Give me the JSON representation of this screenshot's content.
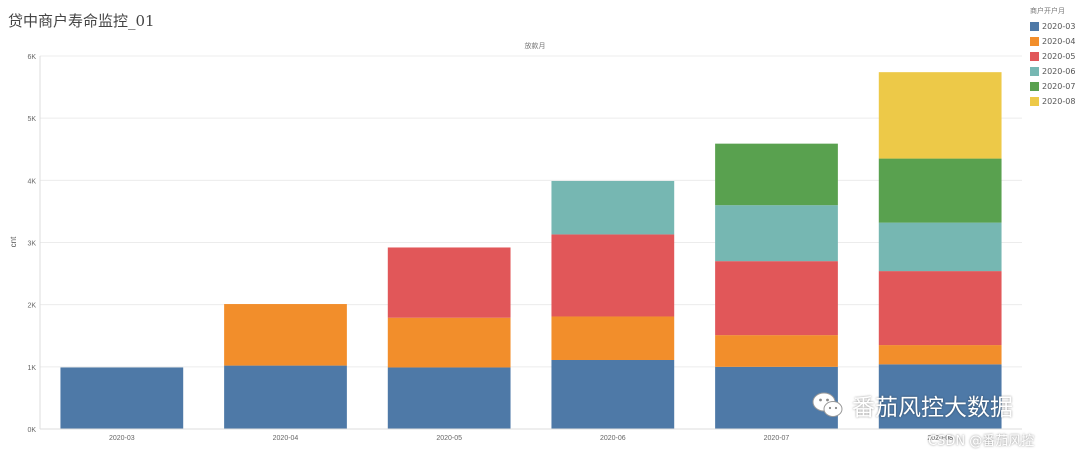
{
  "page": {
    "title": "贷中商户寿命监控_01",
    "watermark": "番茄风控大数据",
    "csdn_mark": "CSDN @番茄风控"
  },
  "chart_data": {
    "type": "bar",
    "stacked": true,
    "title": "贷中商户寿命监控_01",
    "column_header": "放款月",
    "ylabel": "cnt",
    "xlabel": "",
    "ylim": [
      0,
      6000
    ],
    "yticks": [
      0,
      1000,
      2000,
      3000,
      4000,
      5000,
      6000
    ],
    "ytick_labels": [
      "0K",
      "1K",
      "2K",
      "3K",
      "4K",
      "5K",
      "6K"
    ],
    "grid": true,
    "legend_title": "商户开户月",
    "legend_position": "top-right",
    "categories": [
      "2020-03",
      "2020-04",
      "2020-05",
      "2020-06",
      "2020-07",
      "2020-08"
    ],
    "series": [
      {
        "name": "2020-03",
        "color": "#4e79a7",
        "values": [
          990,
          1020,
          990,
          1110,
          1000,
          1040
        ]
      },
      {
        "name": "2020-04",
        "color": "#f28e2b",
        "values": [
          0,
          990,
          800,
          700,
          510,
          310
        ]
      },
      {
        "name": "2020-05",
        "color": "#e15759",
        "values": [
          0,
          0,
          1130,
          1320,
          1190,
          1190
        ]
      },
      {
        "name": "2020-06",
        "color": "#76b7b2",
        "values": [
          0,
          0,
          0,
          860,
          900,
          780
        ]
      },
      {
        "name": "2020-07",
        "color": "#59a14f",
        "values": [
          0,
          0,
          0,
          0,
          990,
          1030
        ]
      },
      {
        "name": "2020-08",
        "color": "#edc948",
        "values": [
          0,
          0,
          0,
          0,
          0,
          1390
        ]
      }
    ]
  }
}
